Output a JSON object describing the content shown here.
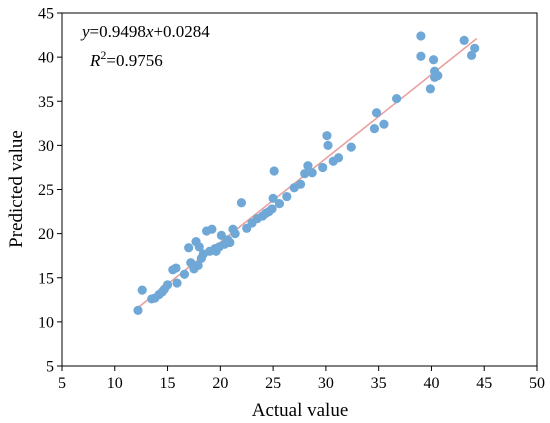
{
  "chart_data": {
    "type": "scatter",
    "xlabel": "Actual value",
    "ylabel": "Predicted value",
    "xlim": [
      5,
      50
    ],
    "ylim": [
      5,
      45
    ],
    "xticks": [
      5,
      10,
      15,
      20,
      25,
      30,
      35,
      40,
      45,
      50
    ],
    "yticks": [
      5,
      10,
      15,
      20,
      25,
      30,
      35,
      40,
      45
    ],
    "grid": false,
    "annotation": {
      "eq_y": "y",
      "eq_eq": "=0.9498",
      "eq_x": "x",
      "eq_rest": "+0.0284",
      "r2_r": "R",
      "r2_sup": "2",
      "r2_rest": "=0.9756"
    },
    "fit_line": {
      "slope": 0.9498,
      "intercept": 0.0284,
      "x_range": [
        12.2,
        44.3
      ],
      "color": "#e8a0a0"
    },
    "point_color": "#6fa8d6",
    "points": [
      [
        12.2,
        11.3
      ],
      [
        12.6,
        13.6
      ],
      [
        13.5,
        12.6
      ],
      [
        13.8,
        12.7
      ],
      [
        14.2,
        13.1
      ],
      [
        14.5,
        13.4
      ],
      [
        14.7,
        13.7
      ],
      [
        15.0,
        14.2
      ],
      [
        15.5,
        15.9
      ],
      [
        15.8,
        16.1
      ],
      [
        15.9,
        14.4
      ],
      [
        16.6,
        15.4
      ],
      [
        17.0,
        18.4
      ],
      [
        17.2,
        16.7
      ],
      [
        17.5,
        16.0
      ],
      [
        17.7,
        19.1
      ],
      [
        17.9,
        16.4
      ],
      [
        18.0,
        18.5
      ],
      [
        18.2,
        17.2
      ],
      [
        18.4,
        17.7
      ],
      [
        18.7,
        20.3
      ],
      [
        19.0,
        18.0
      ],
      [
        19.2,
        20.5
      ],
      [
        19.5,
        18.3
      ],
      [
        19.6,
        18.0
      ],
      [
        19.9,
        18.5
      ],
      [
        20.1,
        19.8
      ],
      [
        20.4,
        18.8
      ],
      [
        20.7,
        19.3
      ],
      [
        20.9,
        19.0
      ],
      [
        21.2,
        20.5
      ],
      [
        21.4,
        20.0
      ],
      [
        22.0,
        23.5
      ],
      [
        22.5,
        20.6
      ],
      [
        23.0,
        21.2
      ],
      [
        23.5,
        21.7
      ],
      [
        24.0,
        22.0
      ],
      [
        24.3,
        22.3
      ],
      [
        24.6,
        22.5
      ],
      [
        24.9,
        22.8
      ],
      [
        25.1,
        27.1
      ],
      [
        25.0,
        24.0
      ],
      [
        25.6,
        23.4
      ],
      [
        26.3,
        24.2
      ],
      [
        27.0,
        25.2
      ],
      [
        27.6,
        25.6
      ],
      [
        28.0,
        26.8
      ],
      [
        28.3,
        27.7
      ],
      [
        28.7,
        26.9
      ],
      [
        29.7,
        27.5
      ],
      [
        30.1,
        31.1
      ],
      [
        30.2,
        30.0
      ],
      [
        30.7,
        28.2
      ],
      [
        31.2,
        28.6
      ],
      [
        32.4,
        29.8
      ],
      [
        34.6,
        31.9
      ],
      [
        34.8,
        33.7
      ],
      [
        35.5,
        32.4
      ],
      [
        36.7,
        35.3
      ],
      [
        39.0,
        42.4
      ],
      [
        39.0,
        40.1
      ],
      [
        39.9,
        36.4
      ],
      [
        40.2,
        39.7
      ],
      [
        40.3,
        38.4
      ],
      [
        40.3,
        37.7
      ],
      [
        40.6,
        37.9
      ],
      [
        43.1,
        41.9
      ],
      [
        43.8,
        40.2
      ],
      [
        44.1,
        41.0
      ]
    ]
  }
}
